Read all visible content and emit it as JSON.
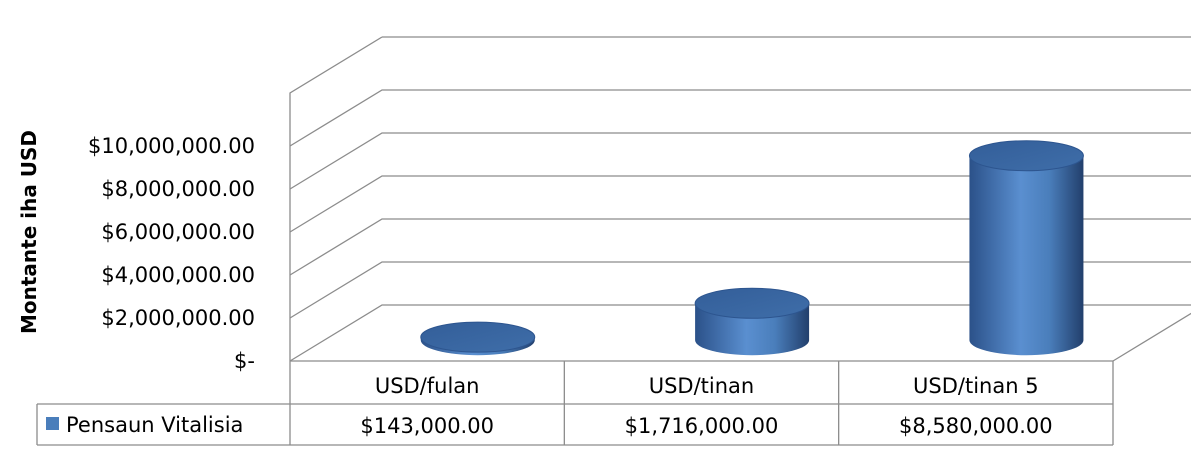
{
  "chart_data": {
    "type": "bar",
    "shape": "3d-cylinder",
    "ylabel": "Montante iha USD",
    "ylim": [
      0,
      10000000
    ],
    "yticks": [
      0,
      2000000,
      4000000,
      6000000,
      8000000,
      10000000
    ],
    "ytick_labels": [
      "$-",
      "$2,000,000.00",
      "$4,000,000.00",
      "$6,000,000.00",
      "$8,000,000.00",
      "$10,000,000.00"
    ],
    "grid": true,
    "categories": [
      "USD/fulan",
      "USD/tinan",
      "USD/tinan 5"
    ],
    "series": [
      {
        "name": "Pensaun Vitalisia",
        "values": [
          143000,
          1716000,
          8580000
        ],
        "value_labels": [
          "$143,000.00",
          "$1,716,000.00",
          "$8,580,000.00"
        ],
        "color": "#4a7ebb"
      }
    ],
    "data_table": true,
    "legend": "data-table"
  }
}
